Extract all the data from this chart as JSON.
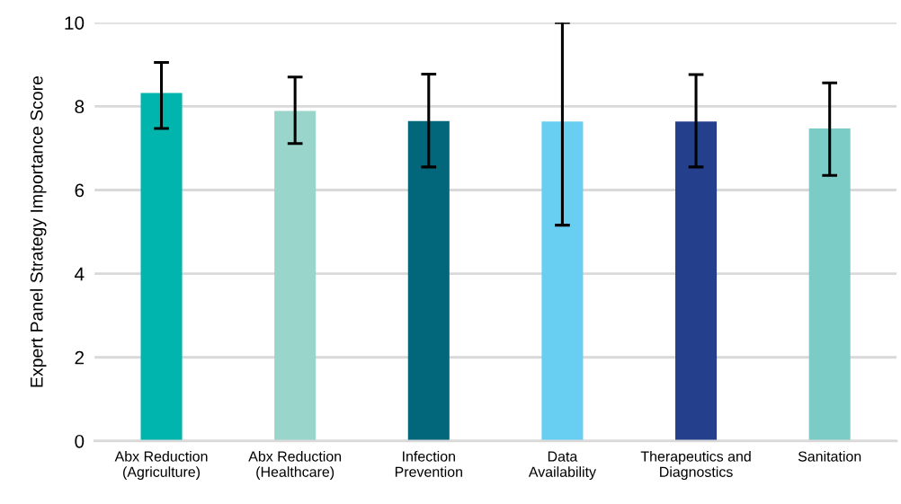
{
  "chart_data": {
    "type": "bar",
    "ylabel": "Expert Panel Strategy Importance Score",
    "categories": [
      "Abx Reduction\n(Agriculture)",
      "Abx Reduction\n(Healthcare)",
      "Infection\nPrevention",
      "Data\nAvailability",
      "Therapeutics and\nDiagnostics",
      "Sanitation"
    ],
    "values": [
      8.32,
      7.89,
      7.65,
      7.64,
      7.64,
      7.47
    ],
    "colors": [
      "#00b5ad",
      "#9ad5cc",
      "#02677a",
      "#68cef2",
      "#243f8c",
      "#7bcbc6"
    ],
    "errors": [
      [
        7.47,
        9.05
      ],
      [
        7.11,
        8.7
      ],
      [
        6.55,
        8.77
      ],
      [
        5.16,
        10.0
      ],
      [
        6.55,
        8.76
      ],
      [
        6.35,
        8.56
      ]
    ],
    "ylim": [
      0,
      10
    ],
    "yticks": [
      0,
      2,
      4,
      6,
      8,
      10
    ],
    "grid": "y"
  }
}
